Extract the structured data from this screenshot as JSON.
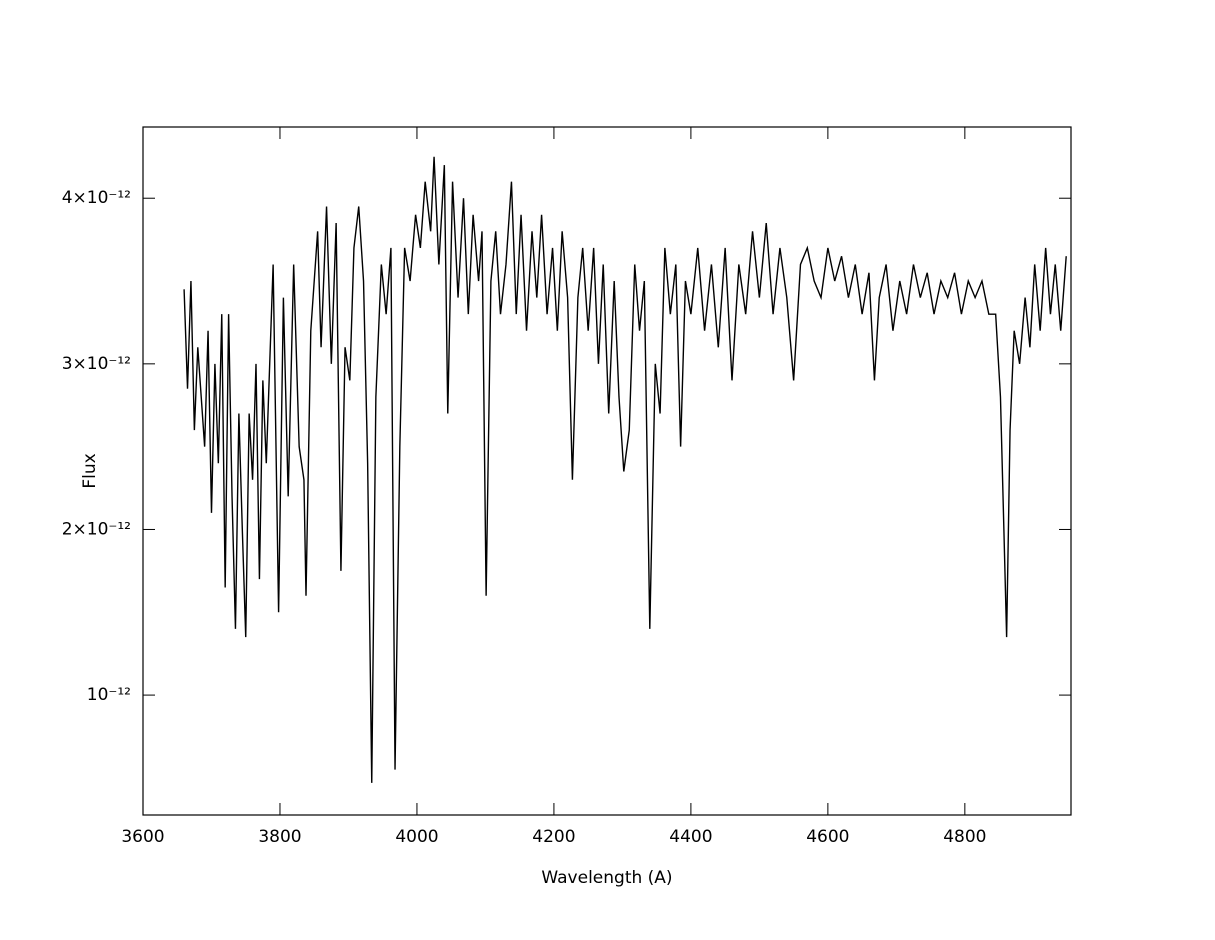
{
  "chart_data": {
    "type": "line",
    "x_label": "Wavelength (A)",
    "y_label": "Flux",
    "color": "#000000",
    "xlim": [
      3600,
      4955
    ],
    "ylim": [
      2.76e-13,
      4.43e-12
    ],
    "xticks": [
      3600,
      3800,
      4000,
      4200,
      4400,
      4600,
      4800
    ],
    "yticks": [
      {
        "value": 1e-12,
        "label": "10⁻¹²"
      },
      {
        "value": 2e-12,
        "label": "2×10⁻¹²"
      },
      {
        "value": 3e-12,
        "label": "3×10⁻¹²"
      },
      {
        "value": 4e-12,
        "label": "4×10⁻¹²"
      }
    ],
    "x": [
      3660,
      3665,
      3670,
      3675,
      3680,
      3690,
      3695,
      3700,
      3705,
      3710,
      3715,
      3720,
      3725,
      3730,
      3735,
      3740,
      3745,
      3750,
      3755,
      3760,
      3765,
      3770,
      3775,
      3780,
      3790,
      3798,
      3805,
      3812,
      3820,
      3828,
      3835,
      3838,
      3845,
      3855,
      3860,
      3868,
      3875,
      3882,
      3889,
      3895,
      3902,
      3908,
      3915,
      3922,
      3928,
      3934,
      3940,
      3948,
      3955,
      3962,
      3968,
      3975,
      3982,
      3990,
      3998,
      4005,
      4012,
      4020,
      4025,
      4032,
      4040,
      4045,
      4052,
      4060,
      4068,
      4075,
      4082,
      4090,
      4095,
      4101,
      4108,
      4115,
      4122,
      4130,
      4138,
      4145,
      4152,
      4160,
      4168,
      4175,
      4182,
      4190,
      4198,
      4205,
      4212,
      4220,
      4227,
      4235,
      4242,
      4250,
      4258,
      4265,
      4272,
      4280,
      4288,
      4295,
      4302,
      4310,
      4318,
      4325,
      4332,
      4340,
      4348,
      4355,
      4362,
      4370,
      4378,
      4385,
      4392,
      4400,
      4410,
      4420,
      4430,
      4440,
      4450,
      4460,
      4470,
      4480,
      4490,
      4500,
      4510,
      4520,
      4530,
      4540,
      4550,
      4560,
      4570,
      4580,
      4590,
      4600,
      4610,
      4620,
      4630,
      4640,
      4650,
      4660,
      4668,
      4675,
      4685,
      4695,
      4705,
      4715,
      4725,
      4735,
      4745,
      4755,
      4765,
      4775,
      4785,
      4795,
      4805,
      4815,
      4825,
      4835,
      4845,
      4852,
      4857,
      4861,
      4866,
      4872,
      4880,
      4888,
      4895,
      4902,
      4910,
      4918,
      4925,
      4932,
      4940,
      4948
    ],
    "values": [
      3.45e-12,
      2.85e-12,
      3.5e-12,
      2.6e-12,
      3.1e-12,
      2.5e-12,
      3.2e-12,
      2.1e-12,
      3e-12,
      2.4e-12,
      3.3e-12,
      1.65e-12,
      3.3e-12,
      2.2e-12,
      1.4e-12,
      2.7e-12,
      2e-12,
      1.35e-12,
      2.7e-12,
      2.3e-12,
      3e-12,
      1.7e-12,
      2.9e-12,
      2.4e-12,
      3.6e-12,
      1.5e-12,
      3.4e-12,
      2.2e-12,
      3.6e-12,
      2.5e-12,
      2.3e-12,
      1.6e-12,
      3.2e-12,
      3.8e-12,
      3.1e-12,
      3.95e-12,
      3e-12,
      3.85e-12,
      1.75e-12,
      3.1e-12,
      2.9e-12,
      3.7e-12,
      3.95e-12,
      3.5e-12,
      2.4e-12,
      4.7e-13,
      2.8e-12,
      3.6e-12,
      3.3e-12,
      3.7e-12,
      5.5e-13,
      2.5e-12,
      3.7e-12,
      3.5e-12,
      3.9e-12,
      3.7e-12,
      4.1e-12,
      3.8e-12,
      4.25e-12,
      3.6e-12,
      4.2e-12,
      2.7e-12,
      4.1e-12,
      3.4e-12,
      4e-12,
      3.3e-12,
      3.9e-12,
      3.5e-12,
      3.8e-12,
      1.6e-12,
      3.5e-12,
      3.8e-12,
      3.3e-12,
      3.6e-12,
      4.1e-12,
      3.3e-12,
      3.9e-12,
      3.2e-12,
      3.8e-12,
      3.4e-12,
      3.9e-12,
      3.3e-12,
      3.7e-12,
      3.2e-12,
      3.8e-12,
      3.4e-12,
      2.3e-12,
      3.4e-12,
      3.7e-12,
      3.2e-12,
      3.7e-12,
      3e-12,
      3.6e-12,
      2.7e-12,
      3.5e-12,
      2.8e-12,
      2.35e-12,
      2.6e-12,
      3.6e-12,
      3.2e-12,
      3.5e-12,
      1.4e-12,
      3e-12,
      2.7e-12,
      3.7e-12,
      3.3e-12,
      3.6e-12,
      2.5e-12,
      3.5e-12,
      3.3e-12,
      3.7e-12,
      3.2e-12,
      3.6e-12,
      3.1e-12,
      3.7e-12,
      2.9e-12,
      3.6e-12,
      3.3e-12,
      3.8e-12,
      3.4e-12,
      3.85e-12,
      3.3e-12,
      3.7e-12,
      3.4e-12,
      2.9e-12,
      3.6e-12,
      3.7e-12,
      3.5e-12,
      3.4e-12,
      3.7e-12,
      3.5e-12,
      3.65e-12,
      3.4e-12,
      3.6e-12,
      3.3e-12,
      3.55e-12,
      2.9e-12,
      3.4e-12,
      3.6e-12,
      3.2e-12,
      3.5e-12,
      3.3e-12,
      3.6e-12,
      3.4e-12,
      3.55e-12,
      3.3e-12,
      3.5e-12,
      3.4e-12,
      3.55e-12,
      3.3e-12,
      3.5e-12,
      3.4e-12,
      3.5e-12,
      3.3e-12,
      3.3e-12,
      2.8e-12,
      2e-12,
      1.35e-12,
      2.6e-12,
      3.2e-12,
      3e-12,
      3.4e-12,
      3.1e-12,
      3.6e-12,
      3.2e-12,
      3.7e-12,
      3.3e-12,
      3.6e-12,
      3.2e-12,
      3.65e-12
    ]
  }
}
